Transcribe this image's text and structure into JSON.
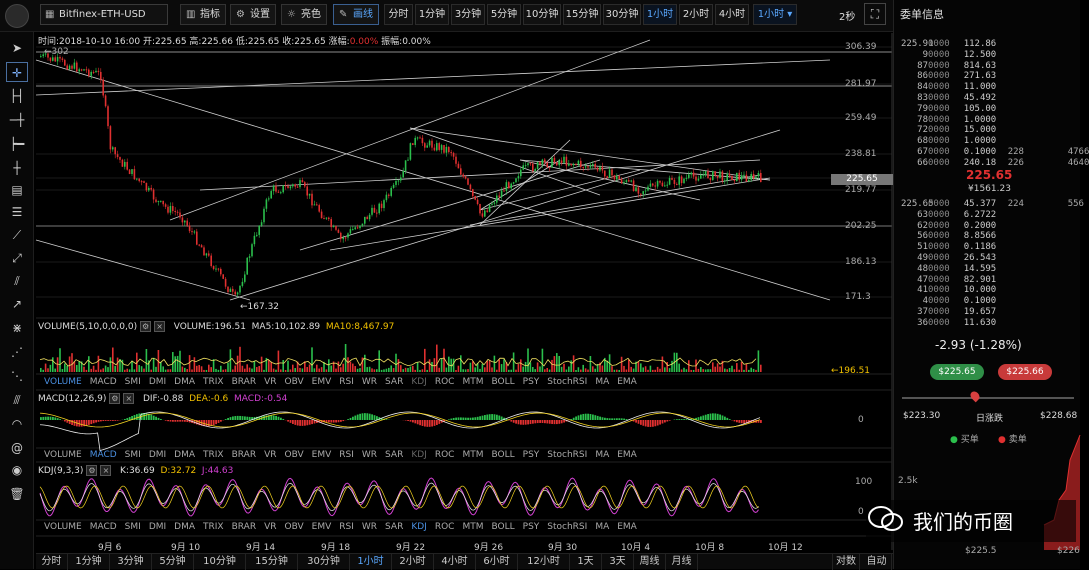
{
  "toolbar": {
    "symbol": "Bitfinex-ETH-USD",
    "buttons": [
      {
        "label": "指标",
        "icon": "bar-chart-icon"
      },
      {
        "label": "设置",
        "icon": "gear-icon"
      },
      {
        "label": "亮色",
        "icon": "sun-icon"
      },
      {
        "label": "画线",
        "icon": "pencil-icon"
      }
    ],
    "timeframes": [
      "分时",
      "1分钟",
      "3分钟",
      "5分钟",
      "10分钟",
      "15分钟",
      "30分钟",
      "1小时",
      "2小时",
      "4小时"
    ],
    "timeframe_selected": "1小时",
    "timeframe_dropdown": "1小时",
    "refresh": "2秒"
  },
  "info_line": {
    "time": "时间:2018-10-10 16:00",
    "open": "开:225.65",
    "high": "高:225.66",
    "low": "低:225.65",
    "close": "收:225.65",
    "change_label": "涨幅:",
    "change_value": "0.00%",
    "amplitude": "振幅:0.00%"
  },
  "price_axis": [
    "306.39",
    "281.97",
    "259.49",
    "238.81",
    "225.65",
    "219.77",
    "202.25",
    "186.13",
    "171.3"
  ],
  "price_marks": {
    "high": "302",
    "low": "167.32"
  },
  "volume": {
    "label": "VOLUME(5,10,0,0,0,0)",
    "vol": "VOLUME:196.51",
    "ma5": "MA5:10,102.89",
    "ma10": "MA10:8,467.97",
    "current": "196.51"
  },
  "indicator_tabs": [
    "VOLUME",
    "MACD",
    "SMI",
    "DMI",
    "DMA",
    "TRIX",
    "BRAR",
    "VR",
    "OBV",
    "EMV",
    "RSI",
    "WR",
    "SAR",
    "KDJ",
    "ROC",
    "MTM",
    "BOLL",
    "PSY",
    "StochRSI",
    "MA",
    "EMA"
  ],
  "macd": {
    "label": "MACD(12,26,9)",
    "dif": "DIF:-0.88",
    "dea": "DEA:-0.6",
    "macd": "MACD:-0.54",
    "axis": "0"
  },
  "kdj": {
    "label": "KDJ(9,3,3)",
    "k": "K:36.69",
    "d": "D:32.72",
    "j": "J:44.63",
    "axis_top": "100",
    "axis_bottom": "0"
  },
  "date_axis": [
    "9月 6",
    "9月 10",
    "9月 14",
    "9月 18",
    "9月 22",
    "9月 26",
    "9月 30",
    "10月 4",
    "10月 8",
    "10月 12"
  ],
  "bottom_tfs": [
    "分时",
    "1分钟",
    "3分钟",
    "5分钟",
    "10分钟",
    "15分钟",
    "30分钟",
    "1小时",
    "2小时",
    "4小时",
    "6小时",
    "12小时",
    "1天",
    "3天",
    "周线",
    "月线"
  ],
  "bottom_tf_selected": "1小时",
  "bottom_right": [
    "对数",
    "自动"
  ],
  "orderbook": {
    "title": "委单信息",
    "asks": [
      [
        "225.91",
        "0000",
        "112.86",
        "",
        ""
      ],
      [
        "9",
        "0000",
        "12.500",
        "",
        ""
      ],
      [
        "87",
        "0000",
        "814.63",
        "",
        ""
      ],
      [
        "86",
        "0000",
        "271.63",
        "",
        ""
      ],
      [
        "84",
        "0000",
        "11.000",
        "",
        ""
      ],
      [
        "83",
        "0000",
        "45.492",
        "",
        ""
      ],
      [
        "79",
        "0000",
        "105.00",
        "",
        ""
      ],
      [
        "78",
        "0000",
        "1.0000",
        "",
        ""
      ],
      [
        "72",
        "0000",
        "15.000",
        "",
        ""
      ],
      [
        "68",
        "0000",
        "1.0000",
        "",
        ""
      ],
      [
        "67",
        "0000",
        "0.1000",
        "228",
        "4766"
      ],
      [
        "66",
        "0000",
        "240.18",
        "226",
        "4640"
      ]
    ],
    "last_price": "225.65",
    "last_cny": "¥1561.23",
    "bids": [
      [
        "225.65",
        "0000",
        "45.377",
        "224",
        "556"
      ],
      [
        "63",
        "0000",
        "6.2722",
        "",
        ""
      ],
      [
        "62",
        "0000",
        "0.2000",
        "",
        ""
      ],
      [
        "56",
        "0000",
        "8.8566",
        "",
        ""
      ],
      [
        "51",
        "0000",
        "0.1186",
        "",
        ""
      ],
      [
        "49",
        "0000",
        "26.543",
        "",
        ""
      ],
      [
        "48",
        "0000",
        "14.595",
        "",
        ""
      ],
      [
        "47",
        "0000",
        "82.901",
        "",
        ""
      ],
      [
        "41",
        "0000",
        "10.000",
        "",
        ""
      ],
      [
        "4",
        "0000",
        "0.1000",
        "",
        ""
      ],
      [
        "37",
        "0000",
        "19.657",
        "",
        ""
      ],
      [
        "36",
        "0000",
        "11.630",
        "",
        ""
      ]
    ],
    "change": "-2.93 (-1.28%)",
    "buy_price": "$225.65",
    "sell_price": "$225.66",
    "range_low": "$223.30",
    "range_label": "日涨跌",
    "range_high": "$228.68",
    "legend_buy": "买单",
    "legend_sell": "卖单",
    "depth_axis_y": "2.5k",
    "depth_axis_x1": "$225.5",
    "depth_axis_x2": "$226"
  },
  "watermark": "我们的币圈",
  "colors": {
    "up": "#2bbf4c",
    "down": "#e03030",
    "accent": "#4a8fe0"
  }
}
